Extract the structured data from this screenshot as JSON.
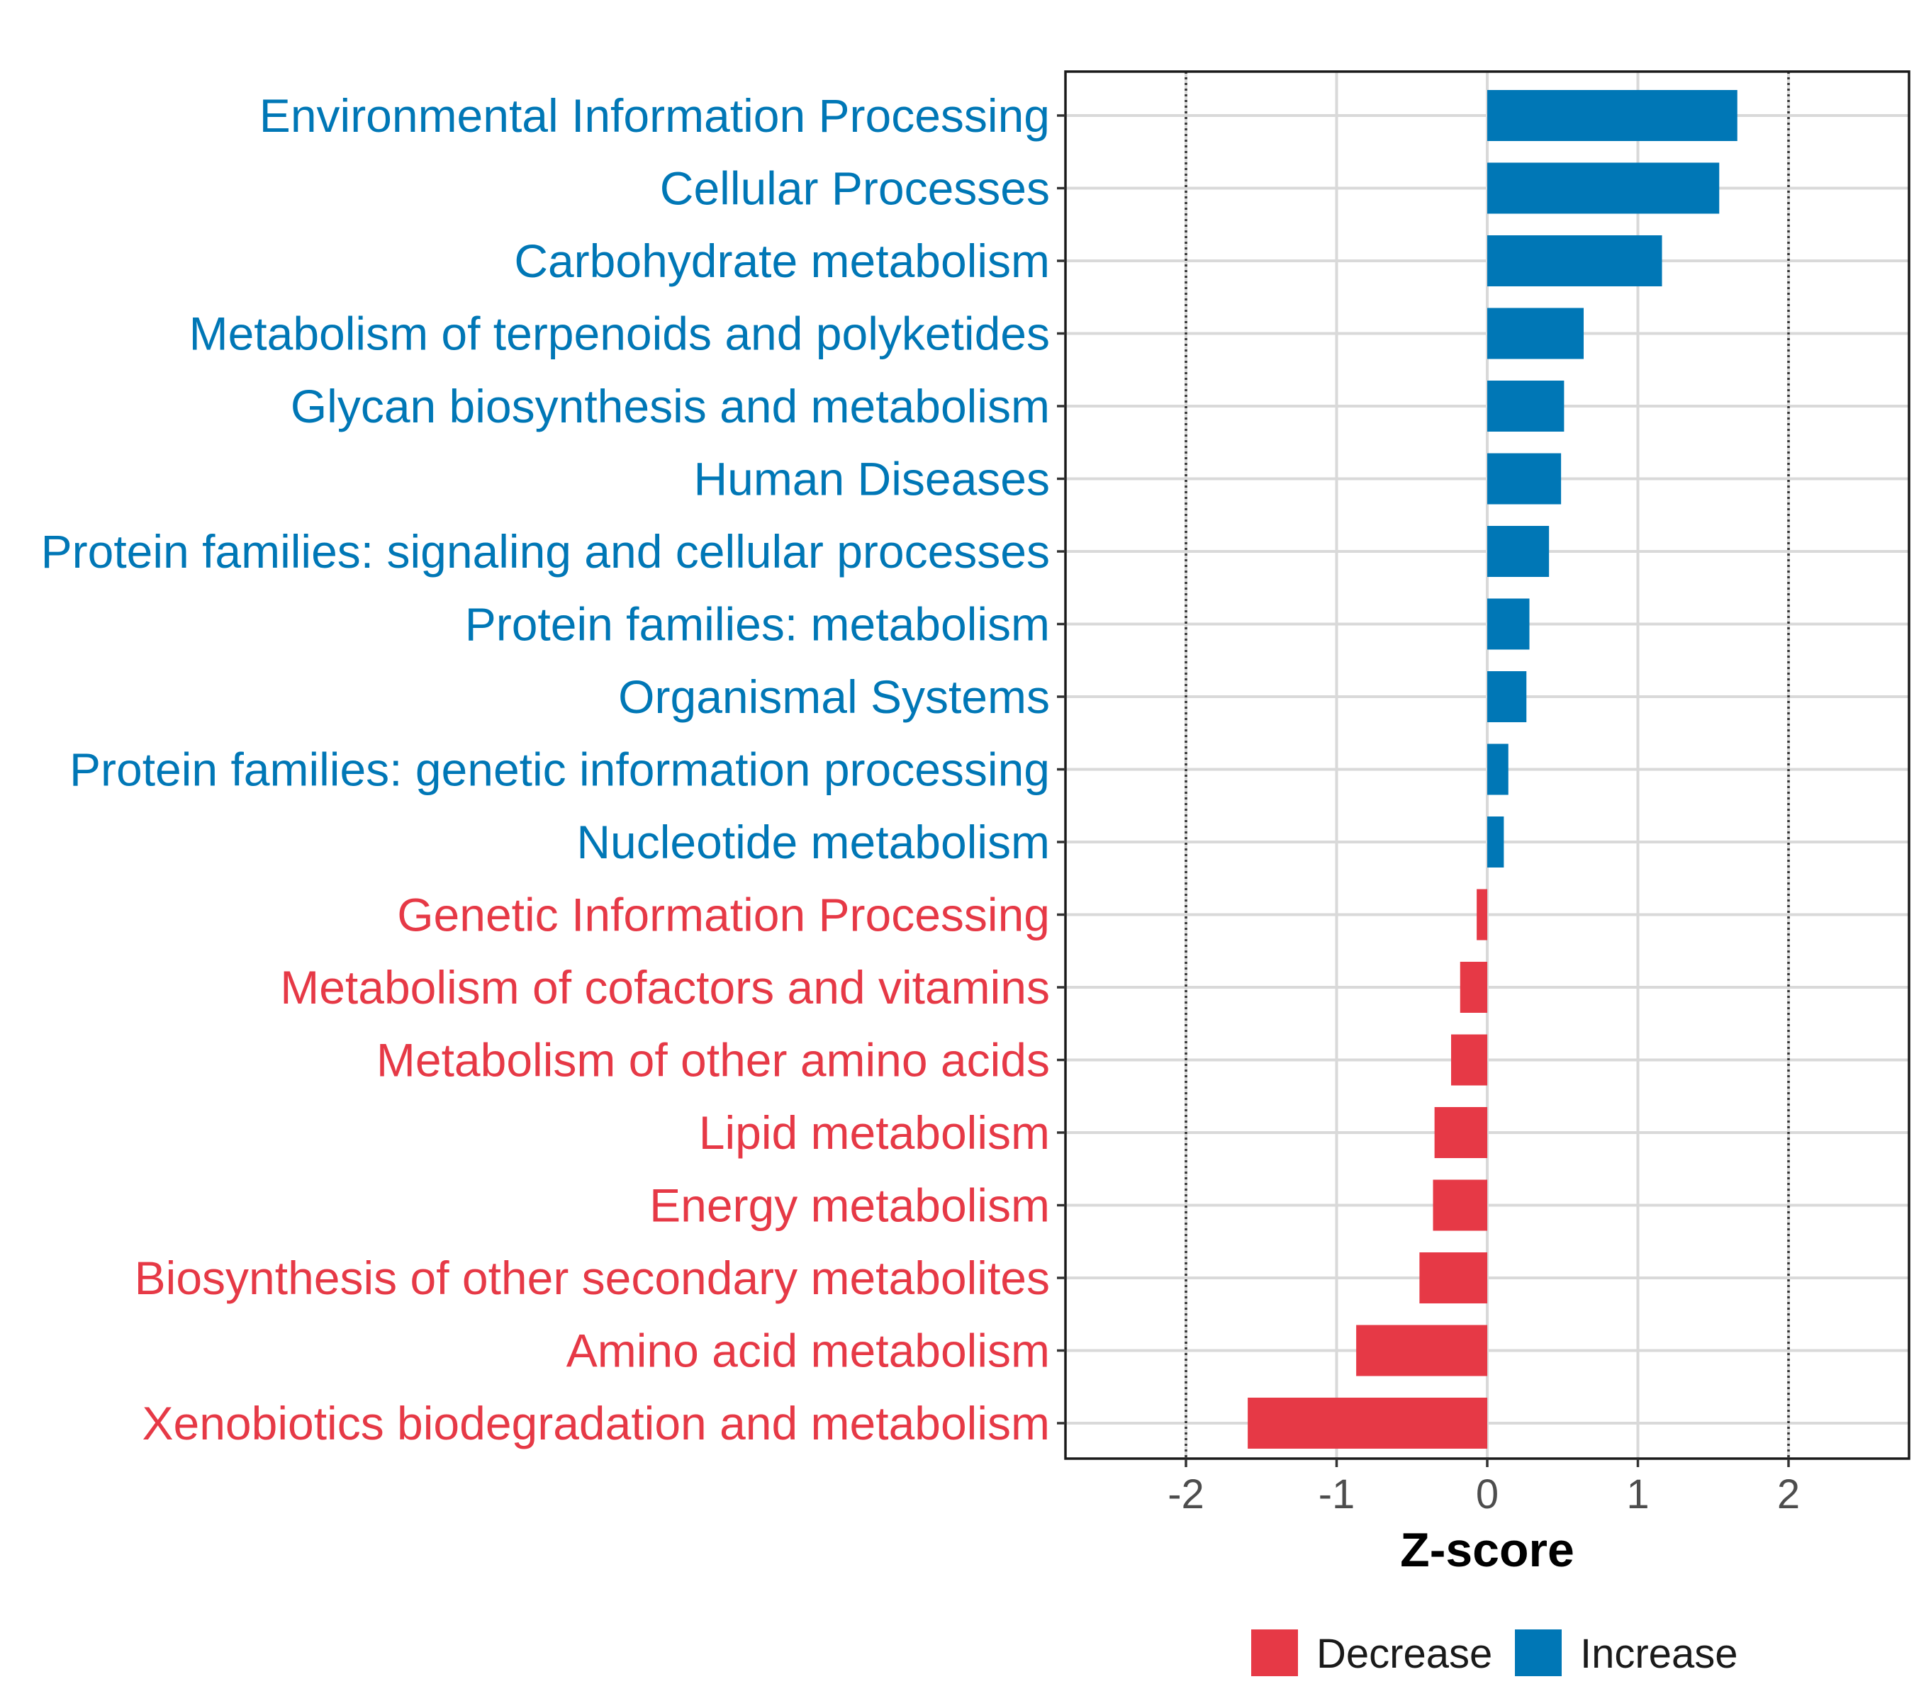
{
  "chart_data": {
    "type": "bar",
    "orientation": "horizontal",
    "title": "",
    "xlabel": "Z-score",
    "ylabel": "",
    "xlim": [
      -2.8,
      2.8
    ],
    "xticks": [
      -2,
      -1,
      0,
      1,
      2
    ],
    "xtick_labels": [
      "-2",
      "-1",
      "0",
      "1",
      "2"
    ],
    "reference_lines": [
      -2,
      2
    ],
    "grid": true,
    "categories": [
      "Environmental Information Processing",
      "Cellular Processes",
      "Carbohydrate metabolism",
      "Metabolism of terpenoids and polyketides",
      "Glycan biosynthesis and metabolism",
      "Human Diseases",
      "Protein families: signaling and cellular processes",
      "Protein families: metabolism",
      "Organismal Systems",
      "Protein families: genetic information processing",
      "Nucleotide metabolism",
      "Genetic Information Processing",
      "Metabolism of cofactors and vitamins",
      "Metabolism of other amino acids",
      "Lipid metabolism",
      "Energy metabolism",
      "Biosynthesis of other secondary metabolites",
      "Amino acid metabolism",
      "Xenobiotics biodegradation and metabolism"
    ],
    "values": [
      1.66,
      1.54,
      1.16,
      0.64,
      0.51,
      0.49,
      0.41,
      0.28,
      0.26,
      0.14,
      0.11,
      -0.07,
      -0.18,
      -0.24,
      -0.35,
      -0.36,
      -0.45,
      -0.87,
      -1.59
    ],
    "direction": [
      "Increase",
      "Increase",
      "Increase",
      "Increase",
      "Increase",
      "Increase",
      "Increase",
      "Increase",
      "Increase",
      "Increase",
      "Increase",
      "Decrease",
      "Decrease",
      "Decrease",
      "Decrease",
      "Decrease",
      "Decrease",
      "Decrease",
      "Decrease"
    ],
    "legend": {
      "placement": "bottom",
      "entries": [
        {
          "name": "Decrease",
          "color": "#E63946"
        },
        {
          "name": "Increase",
          "color": "#0077B6"
        }
      ]
    }
  }
}
